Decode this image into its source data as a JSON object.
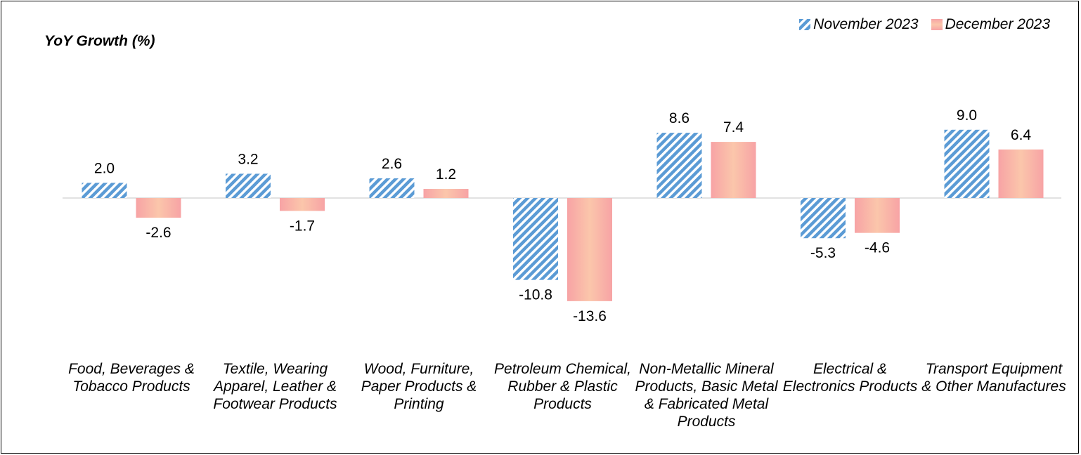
{
  "chart_data": {
    "type": "bar",
    "ylabel": "YoY Growth (%)",
    "categories": [
      "Food, Beverages & Tobacco Products",
      "Textile, Wearing Apparel, Leather & Footwear Products",
      "Wood, Furniture, Paper Products & Printing",
      "Petroleum Chemical, Rubber & Plastic Products",
      "Non-Metallic Mineral Products, Basic Metal & Fabricated Metal Products",
      "Electrical & Electronics Products",
      "Transport Equipment & Other Manufactures"
    ],
    "series": [
      {
        "name": "November 2023",
        "values": [
          2.0,
          3.2,
          2.6,
          -10.8,
          8.6,
          -5.3,
          9.0
        ],
        "color": "#5b9bd5"
      },
      {
        "name": "December 2023",
        "values": [
          -2.6,
          -1.7,
          1.2,
          -13.6,
          7.4,
          -4.6,
          6.4
        ],
        "color": "#f8a3a0"
      }
    ],
    "legend_position": "top-right",
    "grid": false
  }
}
